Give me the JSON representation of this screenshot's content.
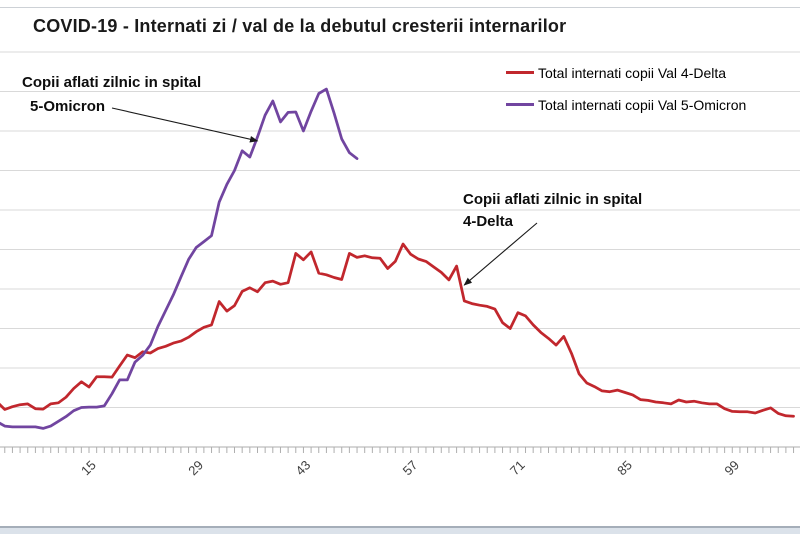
{
  "title": "COVID-19 - Internati zi / val de la debutul cresterii internarilor",
  "legend": {
    "items": [
      {
        "label": "Total internati copii Val 4-Delta",
        "color": "#c1272d"
      },
      {
        "label": "Total internati copii Val 5-Omicron",
        "color": "#7145a0"
      }
    ]
  },
  "annotations": {
    "omicron": {
      "line1": "Copii aflati zilnic in spital",
      "line2": "5-Omicron"
    },
    "delta": {
      "line1": "Copii aflati zilnic in spital",
      "line2": "4-Delta"
    }
  },
  "chart_data": {
    "type": "line",
    "title": "COVID-19 - Internati zi / val de la debutul cresterii internarilor",
    "xlabel": "",
    "ylabel": "",
    "x_tick_labels": [
      15,
      29,
      43,
      57,
      71,
      85,
      99
    ],
    "x_minor_tick_step": 1,
    "xlim": [
      2,
      106.5
    ],
    "ylim": [
      0,
      100
    ],
    "y_gridline_step": 10,
    "y_axis_labels_visible": false,
    "grid": true,
    "legend_position": "top-right",
    "note": "Y-axis value labels are cropped out of the screenshot; series values are estimated in gridline units (one horizontal gridline interval = 10 units). X values are days since start of hospitalization growth wave.",
    "series": [
      {
        "name": "Total internati copii Val 4-Delta",
        "color": "#c1272d",
        "x_start_day": 2,
        "x_step": 1,
        "values": [
          11.4,
          9.5,
          10.2,
          10.7,
          10.9,
          9.7,
          9.6,
          10.9,
          11.2,
          12.6,
          14.8,
          16.5,
          15.2,
          17.8,
          17.8,
          17.7,
          20.5,
          23.3,
          22.6,
          24.1,
          23.8,
          24.9,
          25.5,
          26.3,
          26.8,
          27.8,
          29.2,
          30.3,
          30.9,
          36.8,
          34.4,
          35.8,
          39.4,
          40.3,
          39.3,
          41.6,
          42.0,
          41.2,
          41.6,
          49.0,
          47.4,
          49.4,
          44.0,
          43.6,
          42.9,
          42.4,
          49.0,
          48.0,
          48.4,
          47.9,
          47.8,
          45.2,
          47.0,
          51.4,
          48.8,
          47.6,
          47.0,
          45.6,
          44.2,
          42.3,
          45.8,
          37.0,
          36.3,
          35.9,
          35.6,
          34.9,
          31.5,
          30.0,
          34.0,
          33.2,
          30.9,
          29.0,
          27.5,
          25.8,
          28.0,
          23.7,
          18.5,
          16.2,
          15.3,
          14.2,
          14.0,
          14.4,
          13.8,
          13.2,
          12.0,
          11.8,
          11.4,
          11.2,
          10.9,
          11.9,
          11.4,
          11.6,
          11.2,
          10.9,
          10.9,
          9.7,
          9.0,
          8.9,
          8.9,
          8.6,
          9.3,
          9.9,
          8.5,
          7.9,
          7.8
        ]
      },
      {
        "name": "Total internati copii Val 5-Omicron",
        "color": "#7145a0",
        "x_start_day": 2,
        "x_step": 1,
        "values": [
          6.4,
          5.3,
          5.1,
          5.1,
          5.1,
          5.1,
          4.7,
          5.3,
          6.5,
          7.7,
          9.2,
          10.0,
          10.1,
          10.1,
          10.4,
          13.5,
          17.0,
          17.0,
          21.5,
          23.2,
          25.8,
          30.5,
          34.5,
          38.5,
          43.0,
          47.5,
          50.5,
          52.0,
          53.5,
          62.0,
          66.5,
          70.0,
          75.0,
          73.4,
          78.5,
          84.0,
          87.6,
          82.3,
          84.7,
          84.8,
          80.0,
          85.0,
          89.5,
          90.6,
          84.5,
          78.0,
          74.5,
          73.0
        ]
      }
    ],
    "annotations": [
      {
        "text": "Copii aflati zilnic in spital 5-Omicron",
        "points_to": {
          "day": 36,
          "value": 77.5
        }
      },
      {
        "text": "Copii aflati zilnic in spital 4-Delta",
        "points_to": {
          "day": 63,
          "value": 41.0
        }
      }
    ]
  }
}
